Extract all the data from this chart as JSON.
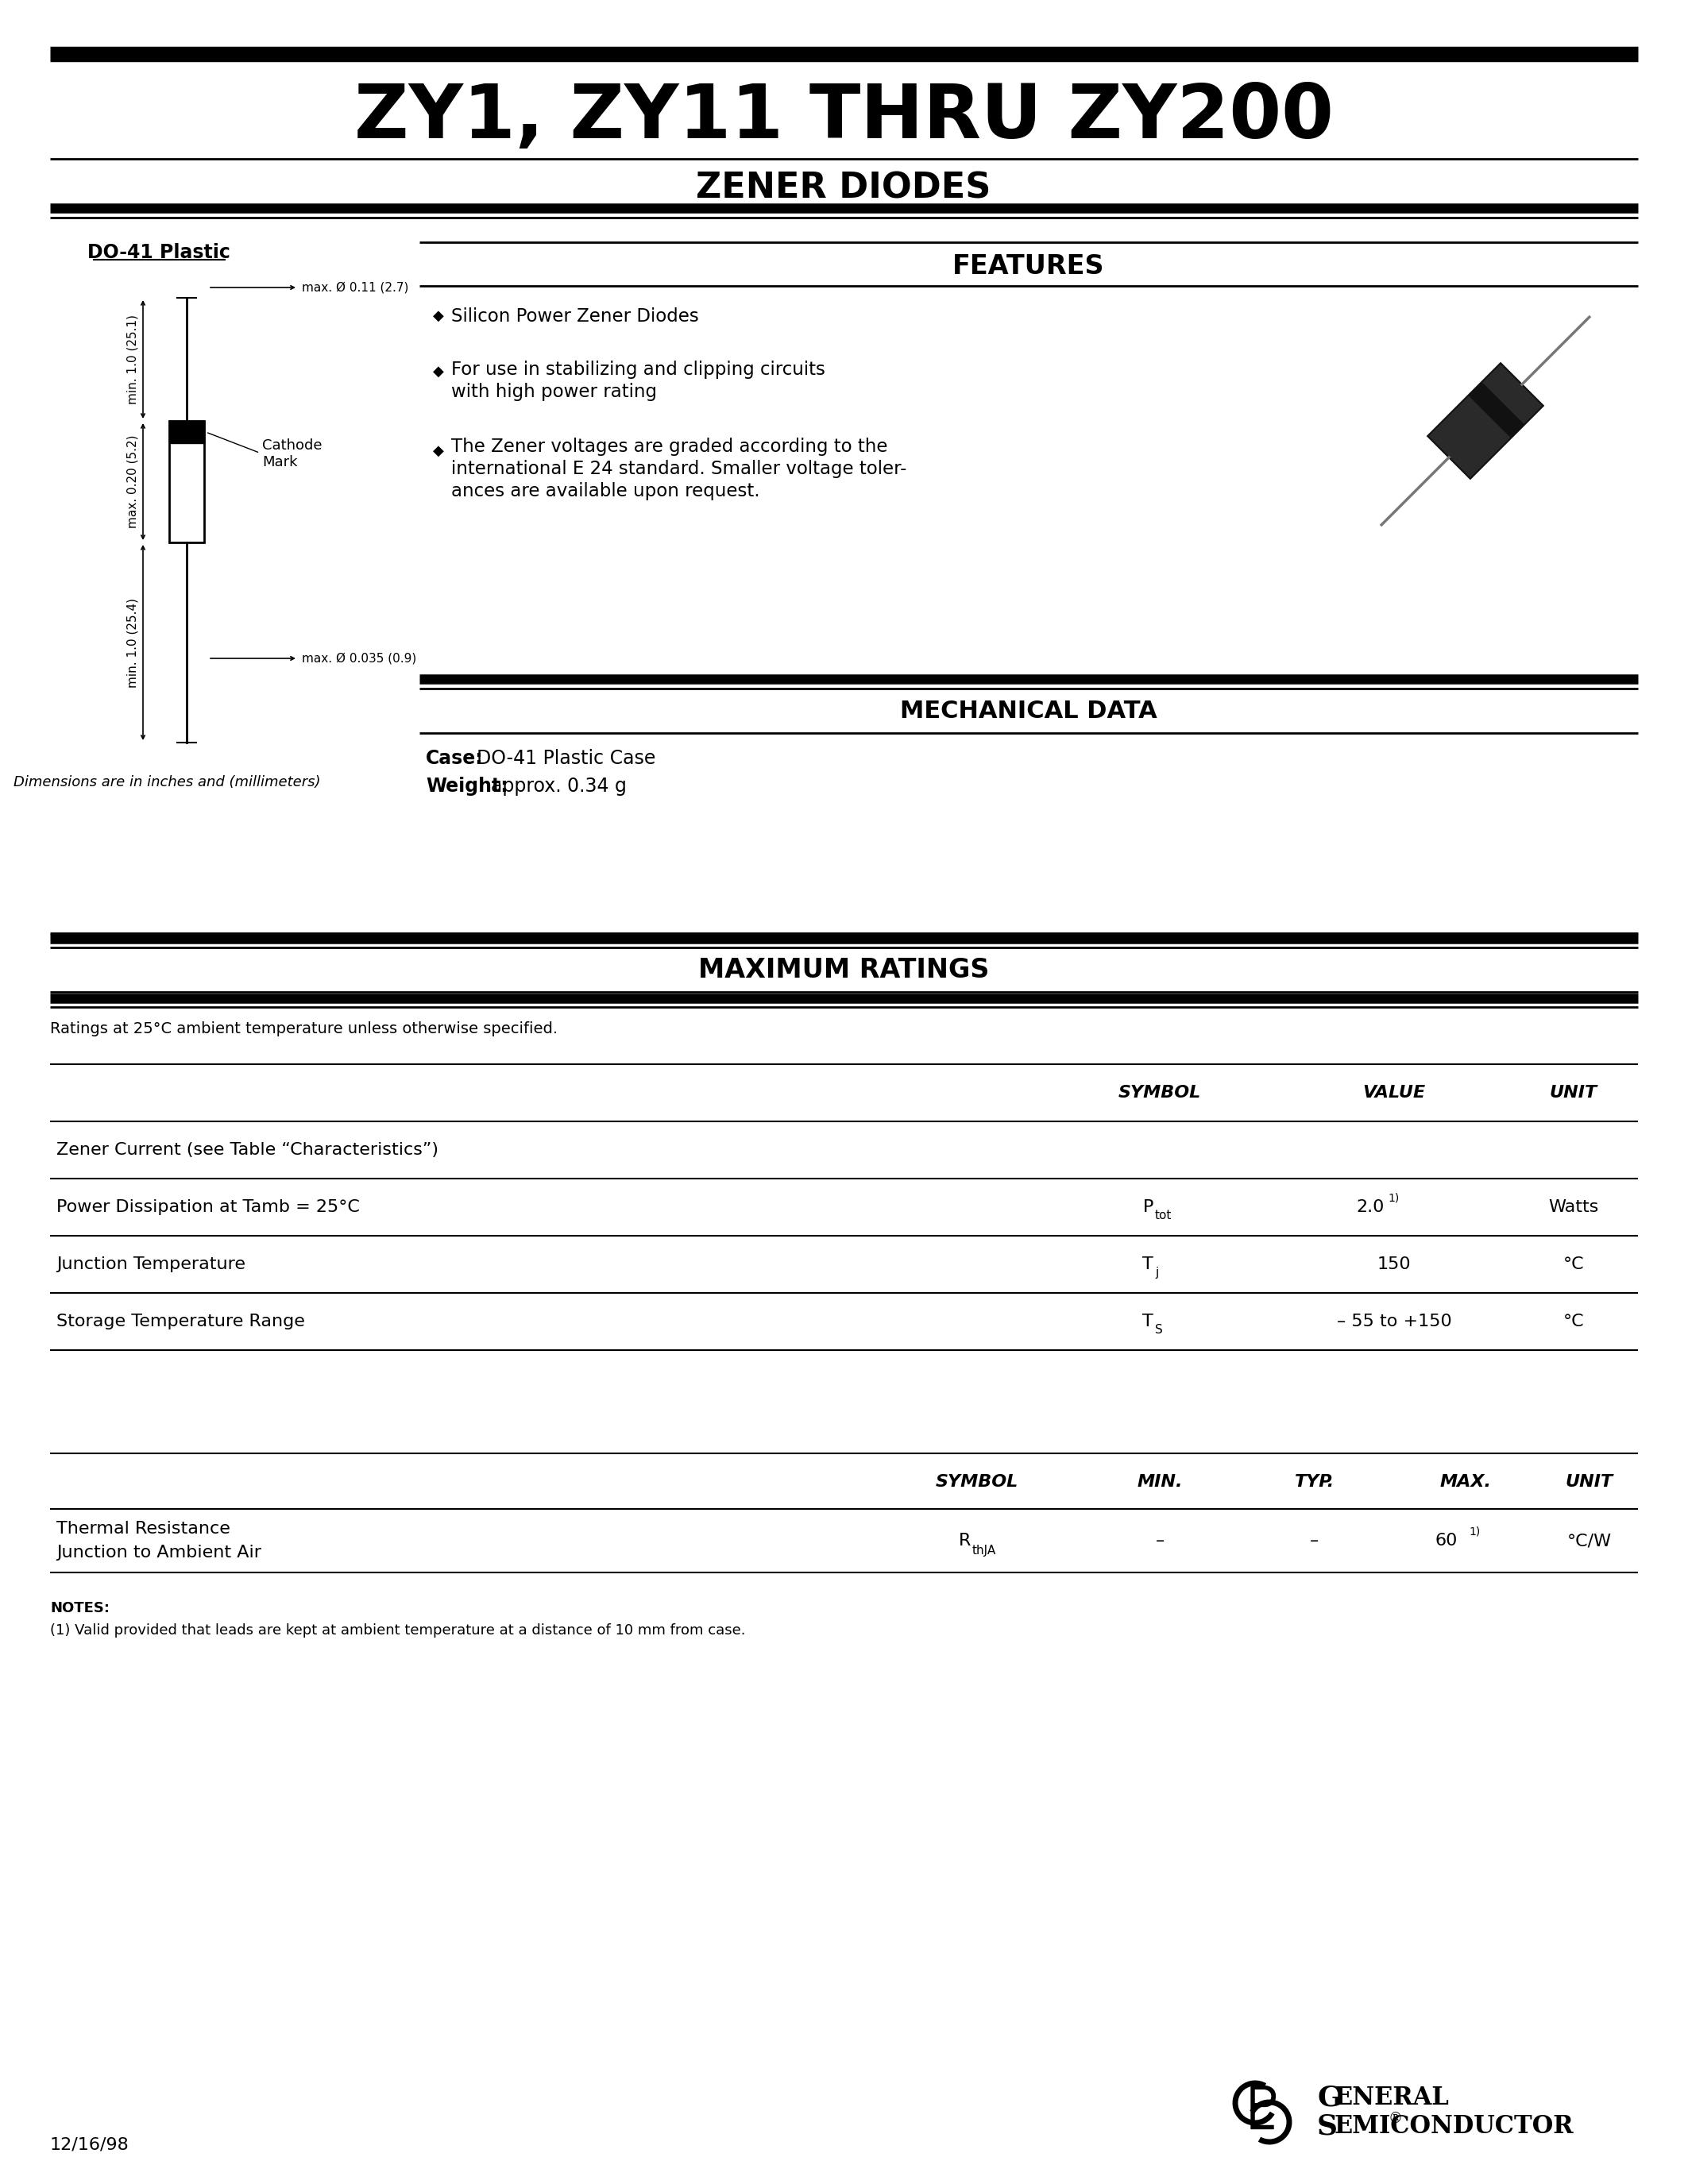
{
  "title": "ZY1, ZY11 THRU ZY200",
  "subtitle": "ZENER DIODES",
  "bg_color": "#ffffff",
  "do41_label": "DO-41 Plastic",
  "dim_note": "Dimensions are in inches and (millimeters)",
  "features_title": "FEATURES",
  "feature1": "Silicon Power Zener Diodes",
  "feature2a": "For use in stabilizing and clipping circuits",
  "feature2b": "with high power rating",
  "feature3a": "The Zener voltages are graded according to the",
  "feature3b": "international E 24 standard. Smaller voltage toler-",
  "feature3c": "ances are available upon request.",
  "mech_title": "MECHANICAL DATA",
  "mech_case_label": "Case:",
  "mech_case_val": "DO-41 Plastic Case",
  "mech_weight_label": "Weight:",
  "mech_weight_val": "approx. 0.34 g",
  "max_ratings_title": "MAXIMUM RATINGS",
  "max_ratings_note": "Ratings at 25°C ambient temperature unless otherwise specified.",
  "col_symbol": "SYMBOL",
  "col_value": "VALUE",
  "col_unit": "UNIT",
  "col_min": "MIN.",
  "col_typ": "TYP.",
  "col_max": "MAX.",
  "row1_label": "Zener Current (see Table “Characteristics”)",
  "row2_label": "Power Dissipation at Tamb = 25°C",
  "row2_sym_main": "P",
  "row2_sym_sub": "tot",
  "row2_val": "2.0",
  "row2_sup": "1)",
  "row2_unit": "Watts",
  "row3_label": "Junction Temperature",
  "row3_sym_main": "T",
  "row3_sym_sub": "j",
  "row3_val": "150",
  "row3_unit": "°C",
  "row4_label": "Storage Temperature Range",
  "row4_sym_main": "T",
  "row4_sym_sub": "S",
  "row4_val": "– 55 to +150",
  "row4_unit": "°C",
  "th_label1": "Thermal Resistance",
  "th_label2": "Junction to Ambient Air",
  "th_sym_main": "R",
  "th_sym_sub": "thJA",
  "th_min": "–",
  "th_typ": "–",
  "th_max": "60",
  "th_sup": "1)",
  "th_unit": "°C/W",
  "notes_title": "NOTES:",
  "notes_text": "(1) Valid provided that leads are kept at ambient temperature at a distance of 10 mm from case.",
  "date": "12/16/98",
  "gs_line1": "General",
  "gs_line2": "Semiconductor"
}
